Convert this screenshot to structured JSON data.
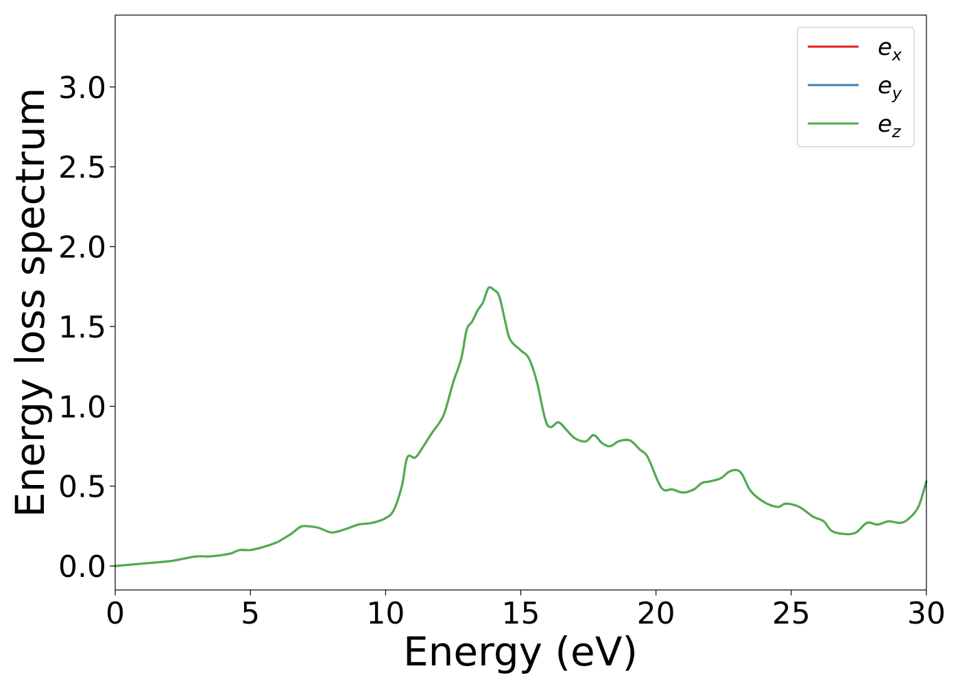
{
  "chart_data": {
    "type": "line",
    "xlabel": "Energy (eV)",
    "ylabel": "Energy loss spectrum",
    "xlim": [
      0,
      30
    ],
    "ylim": [
      -0.15,
      3.45
    ],
    "x_ticks": [
      "0",
      "5",
      "10",
      "15",
      "20",
      "25",
      "30"
    ],
    "x_tick_values": [
      0,
      5,
      10,
      15,
      20,
      25,
      30
    ],
    "y_ticks": [
      "0.0",
      "0.5",
      "1.0",
      "1.5",
      "2.0",
      "2.5",
      "3.0"
    ],
    "y_tick_values": [
      0.0,
      0.5,
      1.0,
      1.5,
      2.0,
      2.5,
      3.0
    ],
    "grid": false,
    "legend_position": "top-right",
    "series": [
      {
        "name": "e_x",
        "legend_base": "e",
        "legend_sub": "x",
        "color": "#e41a1c",
        "x": [
          0,
          1,
          2,
          2.5,
          3,
          3.5,
          4,
          4.3,
          4.6,
          5,
          5.5,
          6,
          6.2,
          6.5,
          6.8,
          7,
          7.5,
          8,
          8.5,
          9,
          9.5,
          10,
          10.3,
          10.6,
          10.8,
          11.1,
          11.4,
          11.7,
          12,
          12.2,
          12.5,
          12.8,
          13,
          13.2,
          13.4,
          13.6,
          13.8,
          14,
          14.2,
          14.4,
          14.6,
          15,
          15.3,
          15.6,
          15.9,
          16.1,
          16.4,
          16.7,
          17,
          17.4,
          17.7,
          18,
          18.3,
          18.6,
          18.9,
          19.1,
          19.4,
          19.7,
          20.2,
          20.6,
          21,
          21.4,
          21.7,
          22,
          22.4,
          22.7,
          23,
          23.2,
          23.5,
          24,
          24.5,
          24.8,
          25.3,
          25.8,
          26.2,
          26.5,
          27,
          27.4,
          27.8,
          28.2,
          28.6,
          29,
          29.3,
          29.7,
          30
        ],
        "y": [
          0.0,
          0.015,
          0.03,
          0.045,
          0.06,
          0.06,
          0.07,
          0.08,
          0.1,
          0.1,
          0.12,
          0.15,
          0.17,
          0.2,
          0.24,
          0.25,
          0.24,
          0.21,
          0.23,
          0.26,
          0.27,
          0.3,
          0.35,
          0.5,
          0.68,
          0.68,
          0.75,
          0.83,
          0.9,
          0.97,
          1.15,
          1.3,
          1.48,
          1.53,
          1.6,
          1.65,
          1.74,
          1.73,
          1.69,
          1.55,
          1.42,
          1.35,
          1.3,
          1.15,
          0.92,
          0.87,
          0.9,
          0.85,
          0.8,
          0.78,
          0.82,
          0.77,
          0.75,
          0.78,
          0.79,
          0.78,
          0.73,
          0.68,
          0.49,
          0.48,
          0.46,
          0.48,
          0.52,
          0.53,
          0.55,
          0.59,
          0.6,
          0.57,
          0.47,
          0.4,
          0.37,
          0.39,
          0.37,
          0.31,
          0.28,
          0.22,
          0.2,
          0.21,
          0.27,
          0.26,
          0.28,
          0.27,
          0.29,
          0.37,
          0.53
        ]
      },
      {
        "name": "e_y",
        "legend_base": "e",
        "legend_sub": "y",
        "color": "#377eb8",
        "x": [
          0,
          1,
          2,
          2.5,
          3,
          3.5,
          4,
          4.3,
          4.6,
          5,
          5.5,
          6,
          6.2,
          6.5,
          6.8,
          7,
          7.5,
          8,
          8.5,
          9,
          9.5,
          10,
          10.3,
          10.6,
          10.8,
          11.1,
          11.4,
          11.7,
          12,
          12.2,
          12.5,
          12.8,
          13,
          13.2,
          13.4,
          13.6,
          13.8,
          14,
          14.2,
          14.4,
          14.6,
          15,
          15.3,
          15.6,
          15.9,
          16.1,
          16.4,
          16.7,
          17,
          17.4,
          17.7,
          18,
          18.3,
          18.6,
          18.9,
          19.1,
          19.4,
          19.7,
          20.2,
          20.6,
          21,
          21.4,
          21.7,
          22,
          22.4,
          22.7,
          23,
          23.2,
          23.5,
          24,
          24.5,
          24.8,
          25.3,
          25.8,
          26.2,
          26.5,
          27,
          27.4,
          27.8,
          28.2,
          28.6,
          29,
          29.3,
          29.7,
          30
        ],
        "y": [
          0.0,
          0.015,
          0.03,
          0.045,
          0.06,
          0.06,
          0.07,
          0.08,
          0.1,
          0.1,
          0.12,
          0.15,
          0.17,
          0.2,
          0.24,
          0.25,
          0.24,
          0.21,
          0.23,
          0.26,
          0.27,
          0.3,
          0.35,
          0.5,
          0.68,
          0.68,
          0.75,
          0.83,
          0.9,
          0.97,
          1.15,
          1.3,
          1.48,
          1.53,
          1.6,
          1.65,
          1.74,
          1.73,
          1.69,
          1.55,
          1.42,
          1.35,
          1.3,
          1.15,
          0.92,
          0.87,
          0.9,
          0.85,
          0.8,
          0.78,
          0.82,
          0.77,
          0.75,
          0.78,
          0.79,
          0.78,
          0.73,
          0.68,
          0.49,
          0.48,
          0.46,
          0.48,
          0.52,
          0.53,
          0.55,
          0.59,
          0.6,
          0.57,
          0.47,
          0.4,
          0.37,
          0.39,
          0.37,
          0.31,
          0.28,
          0.22,
          0.2,
          0.21,
          0.27,
          0.26,
          0.28,
          0.27,
          0.29,
          0.37,
          0.53
        ]
      },
      {
        "name": "e_z",
        "legend_base": "e",
        "legend_sub": "z",
        "color": "#4daf4a",
        "x": [
          0,
          1,
          2,
          2.5,
          3,
          3.5,
          4,
          4.3,
          4.6,
          5,
          5.5,
          6,
          6.2,
          6.5,
          6.8,
          7,
          7.5,
          8,
          8.5,
          9,
          9.5,
          10,
          10.3,
          10.6,
          10.8,
          11.1,
          11.4,
          11.7,
          12,
          12.2,
          12.5,
          12.8,
          13,
          13.2,
          13.4,
          13.6,
          13.8,
          14,
          14.2,
          14.4,
          14.6,
          15,
          15.3,
          15.6,
          15.9,
          16.1,
          16.4,
          16.7,
          17,
          17.4,
          17.7,
          18,
          18.3,
          18.6,
          18.9,
          19.1,
          19.4,
          19.7,
          20.2,
          20.6,
          21,
          21.4,
          21.7,
          22,
          22.4,
          22.7,
          23,
          23.2,
          23.5,
          24,
          24.5,
          24.8,
          25.3,
          25.8,
          26.2,
          26.5,
          27,
          27.4,
          27.8,
          28.2,
          28.6,
          29,
          29.3,
          29.7,
          30
        ],
        "y": [
          0.0,
          0.015,
          0.03,
          0.045,
          0.06,
          0.06,
          0.07,
          0.08,
          0.1,
          0.1,
          0.12,
          0.15,
          0.17,
          0.2,
          0.24,
          0.25,
          0.24,
          0.21,
          0.23,
          0.26,
          0.27,
          0.3,
          0.35,
          0.5,
          0.68,
          0.68,
          0.75,
          0.83,
          0.9,
          0.97,
          1.15,
          1.3,
          1.48,
          1.53,
          1.6,
          1.65,
          1.74,
          1.73,
          1.69,
          1.55,
          1.42,
          1.35,
          1.3,
          1.15,
          0.92,
          0.87,
          0.9,
          0.85,
          0.8,
          0.78,
          0.82,
          0.77,
          0.75,
          0.78,
          0.79,
          0.78,
          0.73,
          0.68,
          0.49,
          0.48,
          0.46,
          0.48,
          0.52,
          0.53,
          0.55,
          0.59,
          0.6,
          0.57,
          0.47,
          0.4,
          0.37,
          0.39,
          0.37,
          0.31,
          0.28,
          0.22,
          0.2,
          0.21,
          0.27,
          0.26,
          0.28,
          0.27,
          0.29,
          0.37,
          0.53
        ]
      }
    ]
  }
}
